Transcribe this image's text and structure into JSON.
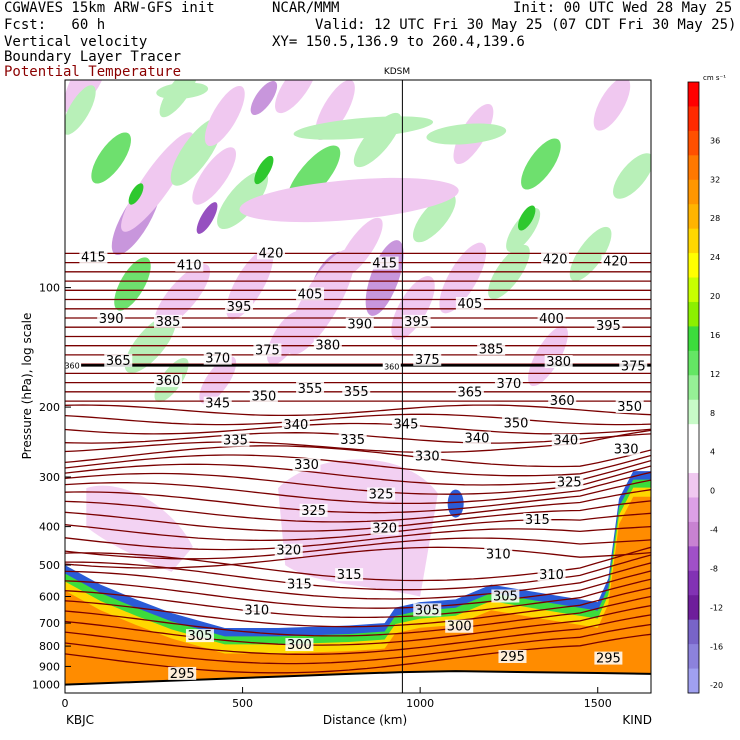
{
  "header": {
    "model": "CGWAVES 15km ARW-GFS init",
    "org": "NCAR/MMM",
    "init": "Init: 00 UTC Wed 28 May 25",
    "fcst": "Fcst:   60 h",
    "valid": "Valid: 12 UTC Fri 30 May 25 (07 CDT Fri 30 May 25)",
    "field1": "Vertical velocity",
    "xy": "XY= 150.5,136.9 to 260.4,139.6",
    "field2": "Boundary Layer Tracer",
    "field3": "Potential Temperature"
  },
  "colors": {
    "theta_contour": "#7a0000",
    "terrain": "#ff8c00",
    "tropopause": "#000000",
    "ascent_light": "#b8f0b8",
    "ascent_mid": "#6ee06e",
    "ascent_strong": "#2ec82e",
    "descent_light": "#f0c8f0",
    "descent_mid": "#c896dc",
    "descent_strong": "#9650c0"
  },
  "chart_data": {
    "type": "heatmap",
    "title": "",
    "xlabel": "Distance (km)",
    "ylabel": "Pressure (hPa), log scale",
    "station_marker": "KDSM",
    "station_marker_km": 950,
    "x_ticks": [
      0,
      500,
      1000,
      1500
    ],
    "xlim": [
      0,
      1650
    ],
    "endpoint_labels": {
      "left": "KBJC",
      "right": "KIND"
    },
    "y_ticks": [
      100,
      200,
      300,
      400,
      500,
      600,
      700,
      800,
      900,
      1000
    ],
    "yscale": "log",
    "ylim": [
      1050,
      30
    ],
    "colorbar": {
      "units": "cm s⁻¹",
      "tick_labels": [
        "36",
        "32",
        "28",
        "24",
        "20",
        "16",
        "12",
        "8",
        "4",
        "0",
        "-4",
        "-8",
        "-12",
        "-16",
        "-20"
      ],
      "colors": [
        "#ff0000",
        "#ff2a00",
        "#ff5000",
        "#ff7800",
        "#ff9600",
        "#ffb400",
        "#ffd700",
        "#ffff00",
        "#c8ff00",
        "#8cf000",
        "#3cdc3c",
        "#64e664",
        "#96f096",
        "#c8fac8",
        "#ffffff",
        "#ffffff",
        "#f0c8f0",
        "#dca0e6",
        "#c882d2",
        "#a050c8",
        "#8232b4",
        "#6e1e9b",
        "#7864c8",
        "#8c82dc",
        "#a0a0f0"
      ]
    },
    "theta_labels": [
      {
        "v": 415,
        "x": 80,
        "p": 84
      },
      {
        "v": 410,
        "x": 350,
        "p": 88
      },
      {
        "v": 420,
        "x": 580,
        "p": 82
      },
      {
        "v": 415,
        "x": 900,
        "p": 87
      },
      {
        "v": 420,
        "x": 1380,
        "p": 85
      },
      {
        "v": 420,
        "x": 1550,
        "p": 86
      },
      {
        "v": 390,
        "x": 130,
        "p": 120
      },
      {
        "v": 385,
        "x": 290,
        "p": 122
      },
      {
        "v": 395,
        "x": 490,
        "p": 112
      },
      {
        "v": 405,
        "x": 690,
        "p": 104
      },
      {
        "v": 390,
        "x": 830,
        "p": 124
      },
      {
        "v": 395,
        "x": 990,
        "p": 122
      },
      {
        "v": 405,
        "x": 1140,
        "p": 110
      },
      {
        "v": 400,
        "x": 1370,
        "p": 120
      },
      {
        "v": 395,
        "x": 1530,
        "p": 125
      },
      {
        "v": 365,
        "x": 150,
        "p": 153
      },
      {
        "v": 370,
        "x": 430,
        "p": 151
      },
      {
        "v": 375,
        "x": 570,
        "p": 144
      },
      {
        "v": 380,
        "x": 740,
        "p": 140
      },
      {
        "v": 375,
        "x": 1020,
        "p": 152
      },
      {
        "v": 385,
        "x": 1200,
        "p": 143
      },
      {
        "v": 380,
        "x": 1390,
        "p": 154
      },
      {
        "v": 375,
        "x": 1600,
        "p": 158
      },
      {
        "v": 360,
        "x": 290,
        "p": 172
      },
      {
        "v": 345,
        "x": 430,
        "p": 196
      },
      {
        "v": 350,
        "x": 560,
        "p": 188
      },
      {
        "v": 355,
        "x": 690,
        "p": 180
      },
      {
        "v": 355,
        "x": 820,
        "p": 183
      },
      {
        "v": 365,
        "x": 1140,
        "p": 184
      },
      {
        "v": 370,
        "x": 1250,
        "p": 175
      },
      {
        "v": 360,
        "x": 1400,
        "p": 193
      },
      {
        "v": 350,
        "x": 1590,
        "p": 200
      },
      {
        "v": 335,
        "x": 480,
        "p": 243
      },
      {
        "v": 340,
        "x": 650,
        "p": 222
      },
      {
        "v": 335,
        "x": 810,
        "p": 242
      },
      {
        "v": 345,
        "x": 960,
        "p": 221
      },
      {
        "v": 340,
        "x": 1160,
        "p": 240
      },
      {
        "v": 350,
        "x": 1270,
        "p": 220
      },
      {
        "v": 340,
        "x": 1410,
        "p": 243
      },
      {
        "v": 330,
        "x": 1580,
        "p": 256
      },
      {
        "v": 330,
        "x": 680,
        "p": 280
      },
      {
        "v": 330,
        "x": 1020,
        "p": 266
      },
      {
        "v": 325,
        "x": 1420,
        "p": 310
      },
      {
        "v": 325,
        "x": 700,
        "p": 365
      },
      {
        "v": 325,
        "x": 890,
        "p": 332
      },
      {
        "v": 320,
        "x": 630,
        "p": 460
      },
      {
        "v": 320,
        "x": 900,
        "p": 405
      },
      {
        "v": 315,
        "x": 1330,
        "p": 385
      },
      {
        "v": 310,
        "x": 1220,
        "p": 470
      },
      {
        "v": 310,
        "x": 1370,
        "p": 530
      },
      {
        "v": 315,
        "x": 660,
        "p": 560
      },
      {
        "v": 315,
        "x": 800,
        "p": 530
      },
      {
        "v": 310,
        "x": 540,
        "p": 650
      },
      {
        "v": 305,
        "x": 1020,
        "p": 650
      },
      {
        "v": 305,
        "x": 1240,
        "p": 600
      },
      {
        "v": 305,
        "x": 380,
        "p": 755
      },
      {
        "v": 300,
        "x": 660,
        "p": 795
      },
      {
        "v": 300,
        "x": 1110,
        "p": 715
      },
      {
        "v": 295,
        "x": 1260,
        "p": 852
      },
      {
        "v": 295,
        "x": 1530,
        "p": 860
      },
      {
        "v": 295,
        "x": 330,
        "p": 940
      }
    ],
    "tropopause_labels": [
      {
        "v": 360,
        "x": 20,
        "p": 157
      },
      {
        "v": 360,
        "x": 920,
        "p": 158
      }
    ]
  }
}
